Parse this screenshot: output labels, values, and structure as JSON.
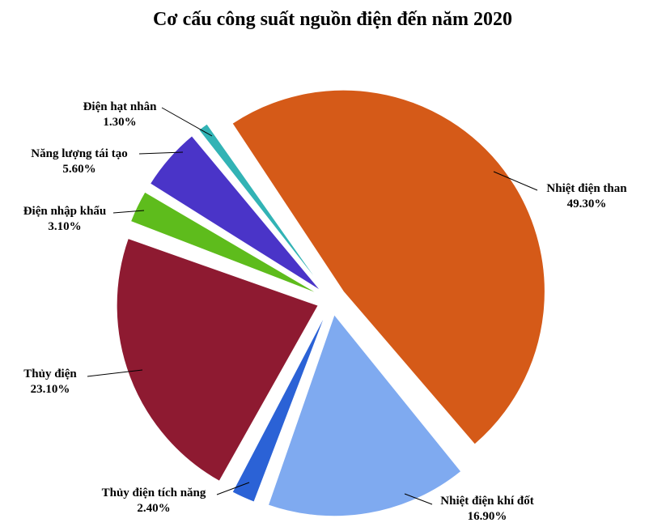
{
  "chart_data": {
    "type": "pie",
    "title": "Cơ cấu công suất nguồn điện đến năm 2020",
    "slices": [
      {
        "label": "Nhiệt điện than",
        "value": 49.3,
        "value_label": "49.30%",
        "color": "#D55A18"
      },
      {
        "label": "Nhiệt điện khí đốt",
        "value": 16.9,
        "value_label": "16.90%",
        "color": "#7FAAF0"
      },
      {
        "label": "Thủy điện tích năng",
        "value": 2.4,
        "value_label": "2.40%",
        "color": "#2B62D6"
      },
      {
        "label": "Thủy điện",
        "value": 23.1,
        "value_label": "23.10%",
        "color": "#8E1A31"
      },
      {
        "label": "Điện nhập khẩu",
        "value": 3.1,
        "value_label": "3.10%",
        "color": "#5EBC1C"
      },
      {
        "label": "Năng lượng tái tạo",
        "value": 5.6,
        "value_label": "5.60%",
        "color": "#4A34C8"
      },
      {
        "label": "Điện hạt nhân",
        "value": 1.3,
        "value_label": "1.30%",
        "color": "#32B3B5"
      }
    ],
    "legend": "none",
    "exploded": true
  }
}
